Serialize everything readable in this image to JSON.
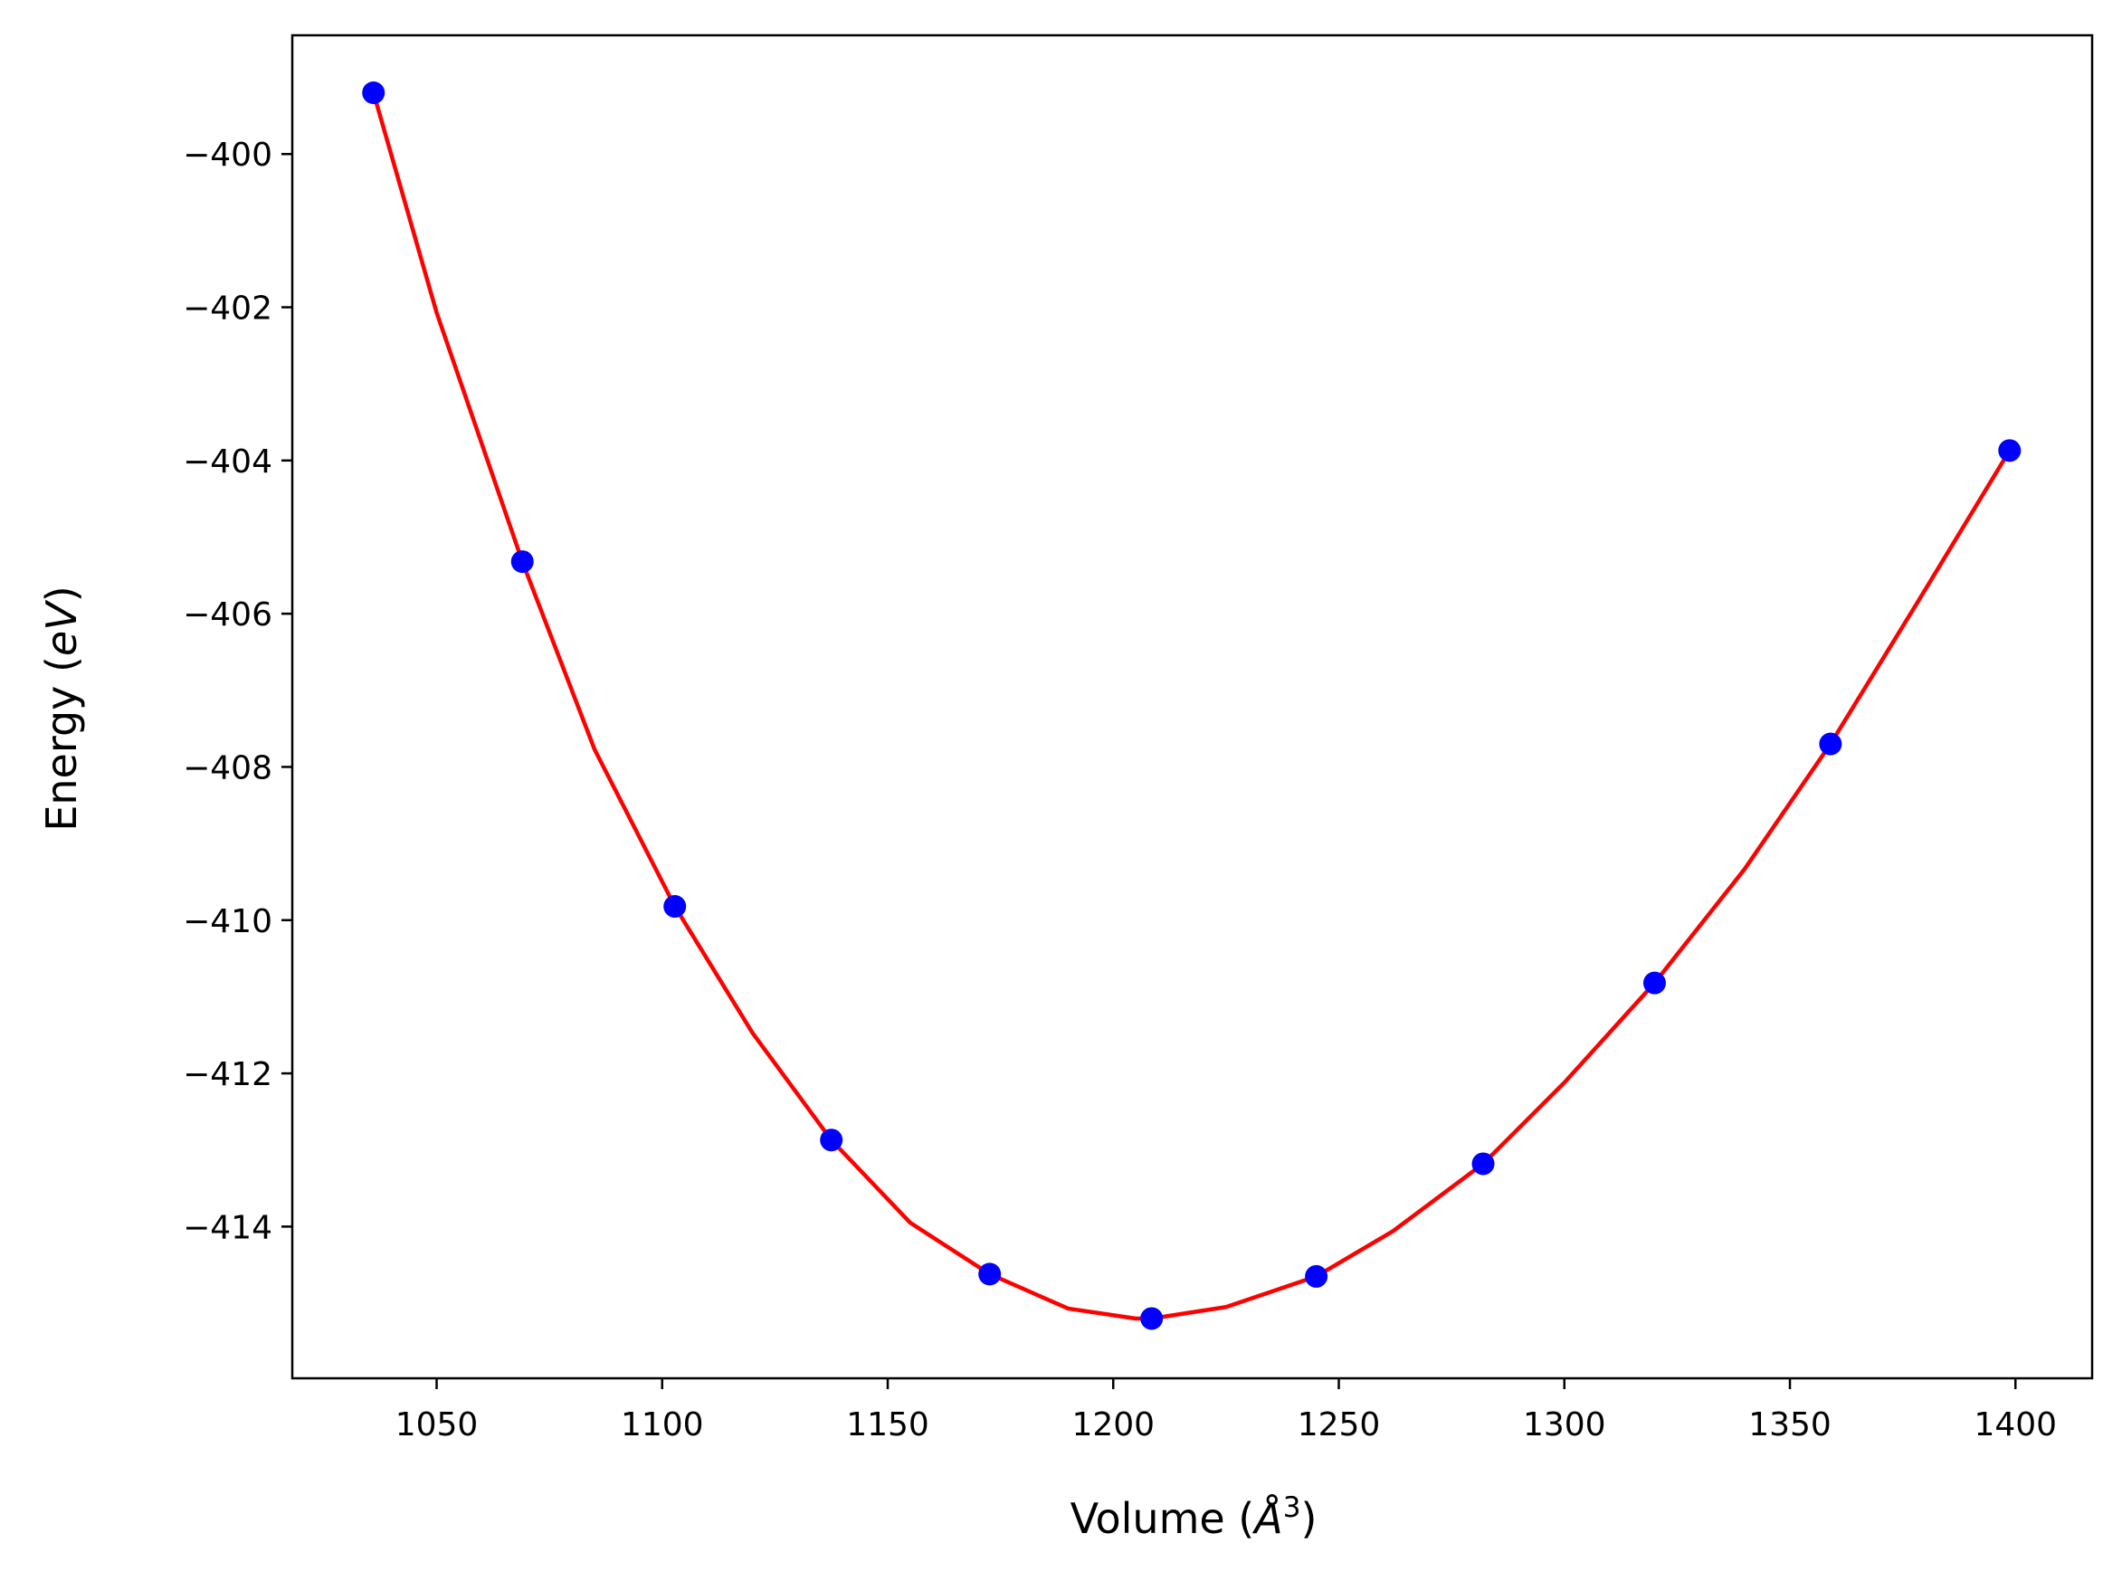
{
  "chart_data": {
    "type": "line",
    "title": "",
    "xlabel_prefix": "Volume (",
    "xlabel_symbol": "Å",
    "xlabel_exp": "3",
    "xlabel_suffix": ")",
    "ylabel_prefix": "Energy (",
    "ylabel_unit": "eV",
    "ylabel_suffix": ")",
    "xlim": [
      1018,
      1417
    ],
    "ylim": [
      -415.98,
      -398.45
    ],
    "xticks": [
      1050,
      1100,
      1150,
      1200,
      1250,
      1300,
      1350,
      1400
    ],
    "xtick_labels": [
      "1050",
      "1100",
      "1150",
      "1200",
      "1250",
      "1300",
      "1350",
      "1400"
    ],
    "yticks": [
      -400,
      -402,
      -404,
      -406,
      -408,
      -410,
      -412,
      -414
    ],
    "ytick_labels": [
      "−400",
      "−402",
      "−404",
      "−406",
      "−408",
      "−410",
      "−412",
      "−414"
    ],
    "grid": false,
    "series": [
      {
        "kind": "scatter",
        "color": "#0000ff",
        "points": [
          [
            1036.0,
            -399.2
          ],
          [
            1069.0,
            -405.32
          ],
          [
            1102.8,
            -409.82
          ],
          [
            1137.5,
            -412.87
          ],
          [
            1172.6,
            -414.62
          ],
          [
            1208.5,
            -415.2
          ],
          [
            1245.0,
            -414.65
          ],
          [
            1282.0,
            -413.18
          ],
          [
            1320.0,
            -410.82
          ],
          [
            1359.0,
            -407.7
          ],
          [
            1398.7,
            -403.87
          ]
        ]
      },
      {
        "kind": "line",
        "color": "#ff0000",
        "points": [
          [
            1036.0,
            -399.2
          ],
          [
            1050.0,
            -402.07
          ],
          [
            1069.0,
            -405.32
          ],
          [
            1085.0,
            -407.77
          ],
          [
            1102.8,
            -409.82
          ],
          [
            1120.0,
            -411.47
          ],
          [
            1137.5,
            -412.87
          ],
          [
            1155.0,
            -413.95
          ],
          [
            1172.6,
            -414.62
          ],
          [
            1190.0,
            -415.07
          ],
          [
            1205.0,
            -415.2
          ],
          [
            1208.5,
            -415.2
          ],
          [
            1225.0,
            -415.05
          ],
          [
            1245.0,
            -414.65
          ],
          [
            1262.0,
            -414.06
          ],
          [
            1282.0,
            -413.18
          ],
          [
            1300.0,
            -412.12
          ],
          [
            1320.0,
            -410.82
          ],
          [
            1340.0,
            -409.33
          ],
          [
            1359.0,
            -407.7
          ],
          [
            1378.0,
            -405.88
          ],
          [
            1398.7,
            -403.87
          ]
        ]
      }
    ]
  }
}
